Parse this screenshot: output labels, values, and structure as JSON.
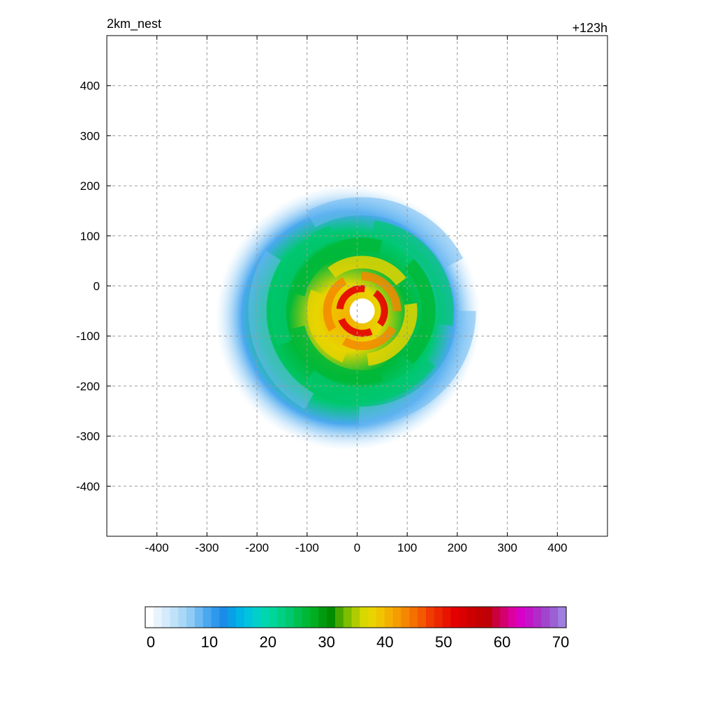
{
  "header": {
    "title_left": "2km_nest",
    "title_right": "+123h"
  },
  "chart_data": {
    "type": "heatmap",
    "title": "2km_nest",
    "forecast_hour_label": "+123h",
    "xlabel": "",
    "ylabel": "",
    "xlim": [
      -500,
      500
    ],
    "ylim": [
      -500,
      500
    ],
    "x_ticks": [
      -400,
      -300,
      -200,
      -100,
      0,
      100,
      200,
      300,
      400
    ],
    "y_ticks": [
      400,
      300,
      200,
      100,
      0,
      -100,
      -200,
      -300,
      -400
    ],
    "grid": true,
    "grid_style": "dashed",
    "storm_center": [
      10,
      -50
    ],
    "eye_radius": 25,
    "colorbar": {
      "min": 0,
      "max": 70,
      "tick_values": [
        0,
        10,
        20,
        30,
        40,
        50,
        60,
        70
      ],
      "colors": [
        "#ffffff",
        "#e8f4fd",
        "#d3ebfb",
        "#bfe2f9",
        "#a9d7f7",
        "#8fcbf5",
        "#6db9f2",
        "#4aa8ef",
        "#2e98ec",
        "#1a8ce8",
        "#0aa0e8",
        "#00b4e6",
        "#00c4dc",
        "#00d0c8",
        "#00d6b0",
        "#00d69a",
        "#00d084",
        "#00c870",
        "#00c050",
        "#00b838",
        "#00ae20",
        "#009a10",
        "#008c00",
        "#44a800",
        "#7ebd00",
        "#b0cc00",
        "#d8d800",
        "#e8d400",
        "#f0c400",
        "#f4b000",
        "#f49c00",
        "#f48800",
        "#f47000",
        "#f45800",
        "#f03c00",
        "#ec2800",
        "#e81400",
        "#e40000",
        "#d80000",
        "#cc0000",
        "#c40000",
        "#c00008",
        "#c8003c",
        "#d40070",
        "#dc00a4",
        "#d800c8",
        "#c414c8",
        "#b02cc8",
        "#a046cc",
        "#9c60d4",
        "#a07ee0"
      ]
    }
  }
}
